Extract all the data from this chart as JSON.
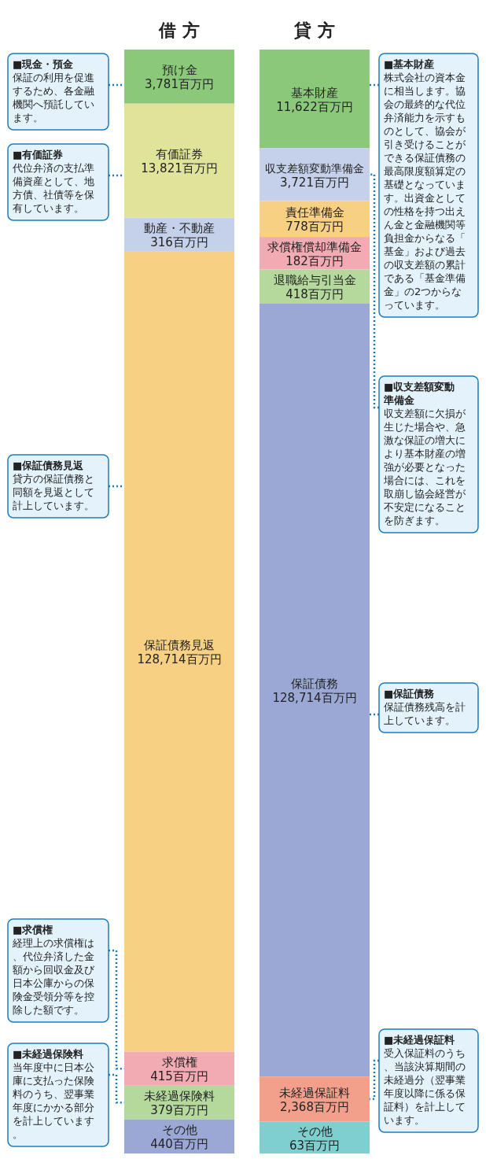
{
  "chart_data": {
    "type": "other",
    "categories": [
      "借 方",
      "貸 方"
    ],
    "series": [
      {
        "name": "預け金",
        "color": "#8cc87a",
        "values": [
          3781,
          null
        ],
        "value_labels": [
          "3,781百万円",
          null
        ]
      },
      {
        "name": "有価証券",
        "color": "#e0e39a",
        "values": [
          13821,
          null
        ],
        "value_labels": [
          "13,821百万円",
          null
        ]
      },
      {
        "name": "動産・不動産",
        "color": "#c5d0ea",
        "values": [
          316,
          null
        ],
        "value_labels": [
          "316百万円",
          null
        ]
      },
      {
        "name": "保証債務見返",
        "color": "#f7d083",
        "values": [
          128714,
          null
        ],
        "value_labels": [
          "128,714百万円",
          null
        ]
      },
      {
        "name": "求償権",
        "color": "#f2aab3",
        "values": [
          415,
          null
        ],
        "value_labels": [
          "415百万円",
          null
        ]
      },
      {
        "name": "未経過保険料",
        "color": "#b5d99c",
        "values": [
          379,
          null
        ],
        "value_labels": [
          "379百万円",
          null
        ]
      },
      {
        "name": "その他",
        "color": "#9ba8d6",
        "values": [
          440,
          null
        ],
        "value_labels": [
          "440百万円",
          null
        ]
      },
      {
        "name": "基本財産",
        "color": "#8cc87a",
        "values": [
          null,
          11622
        ],
        "value_labels": [
          null,
          "11,622百万円"
        ]
      },
      {
        "name": "収支差額変動準備金",
        "color": "#c5d0ea",
        "values": [
          null,
          3721
        ],
        "value_labels": [
          null,
          "3,721百万円"
        ]
      },
      {
        "name": "責任準備金",
        "color": "#f7d083",
        "values": [
          null,
          778
        ],
        "value_labels": [
          null,
          "778百万円"
        ]
      },
      {
        "name": "求償権償却準備金",
        "color": "#f2aab3",
        "values": [
          null,
          182
        ],
        "value_labels": [
          null,
          "182百万円"
        ]
      },
      {
        "name": "退職給与引当金",
        "color": "#b5d99c",
        "values": [
          null,
          418
        ],
        "value_labels": [
          null,
          "418百万円"
        ]
      },
      {
        "name": "保証債務",
        "color": "#9ba8d6",
        "values": [
          null,
          128714
        ],
        "value_labels": [
          null,
          "128,714百万円"
        ]
      },
      {
        "name": "未経過保証料",
        "color": "#f2a08c",
        "values": [
          null,
          2368
        ],
        "value_labels": [
          null,
          "2,368百万円"
        ]
      },
      {
        "name": "その他",
        "color": "#7fcfcf",
        "values": [
          null,
          63
        ],
        "value_labels": [
          null,
          "63百万円"
        ]
      }
    ],
    "annotations": [
      {
        "text": "■現金・預金",
        "x": "借 方"
      },
      {
        "text": "保証の利用を促進するため、各金融機関へ預託しています。",
        "x": "借 方"
      },
      {
        "text": "■有価証券",
        "x": "借 方"
      },
      {
        "text": "代位弁済の支払準備資産として、地方債、社債等を保有しています。",
        "x": "借 方"
      },
      {
        "text": "■保証債務見返",
        "x": "借 方"
      },
      {
        "text": "貸方の保証債務と同額を見返として計上しています。",
        "x": "借 方"
      },
      {
        "text": "■求償権",
        "x": "借 方"
      },
      {
        "text": "経理上の求償権は、代位弁済した金額から回収金及び日本公庫からの保険金受領分等を控除した額です。",
        "x": "借 方"
      },
      {
        "text": "■未経過保険料",
        "x": "借 方"
      },
      {
        "text": "当年度中に日本公庫に支払った保険料のうち、翌事業年度にかかる部分を計上しています。",
        "x": "借 方"
      },
      {
        "text": "■基本財産",
        "x": "貸 方"
      },
      {
        "text": "株式会社の資本金に相当します。協会の最終的な代位弁済能力を示すものとして、協会が引き受けることができる保証債務の最高限度額算定の基礎となっています。出資金としての性格を持つ出えん金と金融機関等負担金からなる「基金」および過去の収支差額の累計である「基金準備金」の2つからなっています。",
        "x": "貸 方"
      },
      {
        "text": "■収支差額変動準備金",
        "x": "貸 方"
      },
      {
        "text": "収支差額に欠損が生じた場合や、急激な保証の増大により基本財産の増強が必要となった場合には、これを取崩し協会経営が不安定になることを防ぎます。",
        "x": "貸 方"
      },
      {
        "text": "■保証債務",
        "x": "貸 方"
      },
      {
        "text": "保証債務残高を計上しています。",
        "x": "貸 方"
      },
      {
        "text": "■未経過保証料",
        "x": "貸 方"
      },
      {
        "text": "受入保証料のうち、当該決算期間の未経過分（翌事業年度以降に係る保証料）を計上しています。",
        "x": "貸 方"
      }
    ],
    "data_labels": true
  }
}
